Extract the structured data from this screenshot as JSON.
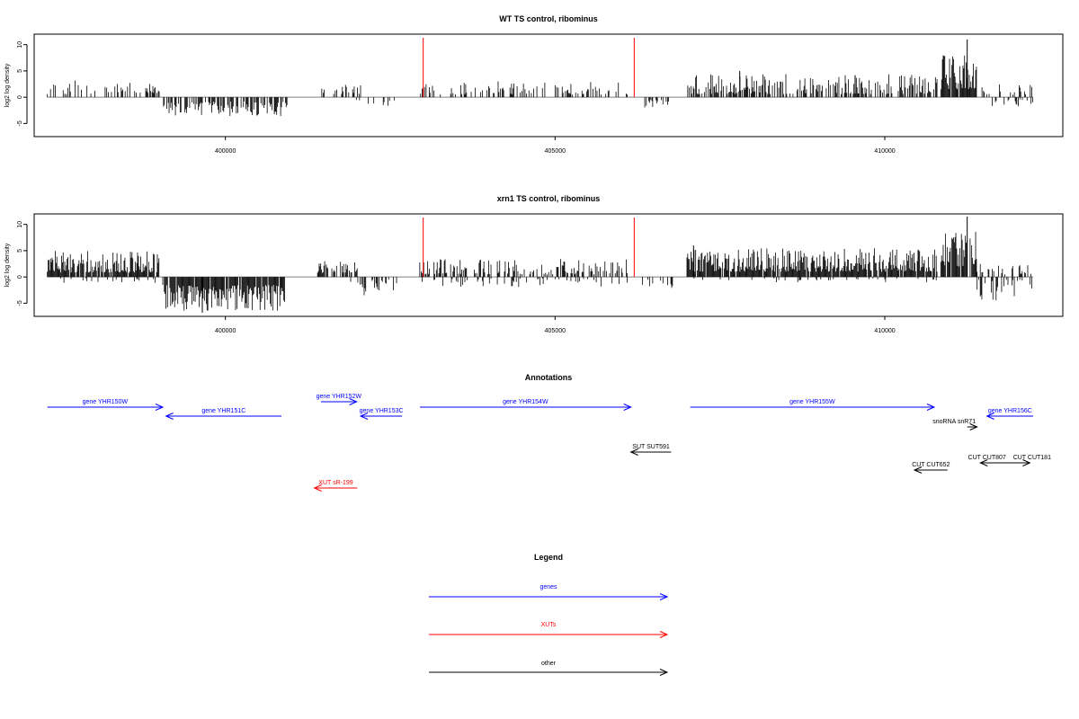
{
  "colors": {
    "gene": "#0000ff",
    "xut": "#ff0000",
    "other": "#000000",
    "axis": "#000000",
    "baseline": "#808080",
    "marker": "#ff0000"
  },
  "chart_data": [
    {
      "type": "bar",
      "title": "WT TS control, ribominus",
      "ylabel": "log2 log density",
      "xlim": [
        397100,
        412700
      ],
      "ylim": [
        -7.5,
        12
      ],
      "yticks": [
        -5,
        0,
        5,
        10
      ],
      "yticklabels": [
        "-5",
        "0",
        "5",
        "10"
      ],
      "xticks": [
        400000,
        405000,
        410000
      ],
      "xticklabels": [
        "400000",
        "405000",
        "410000"
      ],
      "markers": [
        403000,
        406200
      ],
      "segments": [
        {
          "from": 397300,
          "to": 398300,
          "sign": 1,
          "lo": 0.6,
          "hi": 3.5,
          "density": 0.35
        },
        {
          "from": 398300,
          "to": 399000,
          "sign": 1,
          "lo": 0.8,
          "hi": 2.8,
          "density": 0.4
        },
        {
          "from": 399050,
          "to": 400950,
          "sign": -1,
          "lo": 0.8,
          "hi": 3.6,
          "density": 0.55
        },
        {
          "from": 401450,
          "to": 402050,
          "sign": 1,
          "lo": 0.6,
          "hi": 2.4,
          "density": 0.35
        },
        {
          "from": 401950,
          "to": 402600,
          "sign": -1,
          "lo": 0.5,
          "hi": 1.8,
          "density": 0.2
        },
        {
          "from": 402900,
          "to": 406150,
          "sign": 1,
          "lo": 0.5,
          "hi": 3.0,
          "density": 0.35
        },
        {
          "from": 406300,
          "to": 406750,
          "sign": -1,
          "lo": 0.5,
          "hi": 2.2,
          "density": 0.25
        },
        {
          "from": 407000,
          "to": 410800,
          "sign": 1,
          "lo": 0.6,
          "hi": 4.4,
          "density": 0.55
        },
        {
          "from": 410850,
          "to": 411400,
          "sign": 1,
          "lo": 1.5,
          "hi": 8.0,
          "density": 0.9
        },
        {
          "from": 411450,
          "to": 412250,
          "sign": 1,
          "lo": 0.5,
          "hi": 2.5,
          "density": 0.35
        },
        {
          "from": 411450,
          "to": 412250,
          "sign": -1,
          "lo": 0.4,
          "hi": 1.8,
          "density": 0.2
        }
      ],
      "peaks": [
        {
          "x": 411250,
          "y": 11.0
        },
        {
          "x": 407800,
          "y": 5.0
        },
        {
          "x": 409550,
          "y": 4.2
        }
      ]
    },
    {
      "type": "bar",
      "title": "xrn1 TS control, ribominus",
      "ylabel": "log2 log density",
      "xlim": [
        397100,
        412700
      ],
      "ylim": [
        -7.5,
        12
      ],
      "yticks": [
        -5,
        0,
        5,
        10
      ],
      "yticklabels": [
        "-5",
        "0",
        "5",
        "10"
      ],
      "xticks": [
        400000,
        405000,
        410000
      ],
      "xticklabels": [
        "400000",
        "405000",
        "410000"
      ],
      "markers": [
        403000,
        406200
      ],
      "segments": [
        {
          "from": 397300,
          "to": 399000,
          "sign": 1,
          "lo": 0.8,
          "hi": 5.0,
          "density": 0.85
        },
        {
          "from": 397300,
          "to": 399000,
          "sign": -1,
          "lo": 0.3,
          "hi": 1.2,
          "density": 0.15
        },
        {
          "from": 399050,
          "to": 400900,
          "sign": -1,
          "lo": 1.5,
          "hi": 6.5,
          "density": 0.9
        },
        {
          "from": 401350,
          "to": 402000,
          "sign": 1,
          "lo": 0.8,
          "hi": 3.0,
          "density": 0.6
        },
        {
          "from": 401900,
          "to": 402600,
          "sign": -1,
          "lo": 0.5,
          "hi": 3.5,
          "density": 0.4
        },
        {
          "from": 402900,
          "to": 406150,
          "sign": 1,
          "lo": 0.5,
          "hi": 3.5,
          "density": 0.45
        },
        {
          "from": 402900,
          "to": 406150,
          "sign": -1,
          "lo": 0.3,
          "hi": 2.0,
          "density": 0.2
        },
        {
          "from": 406300,
          "to": 406800,
          "sign": -1,
          "lo": 0.5,
          "hi": 2.2,
          "density": 0.3
        },
        {
          "from": 407000,
          "to": 410800,
          "sign": 1,
          "lo": 1.0,
          "hi": 5.5,
          "density": 0.92
        },
        {
          "from": 407000,
          "to": 410800,
          "sign": -1,
          "lo": 0.3,
          "hi": 1.0,
          "density": 0.1
        },
        {
          "from": 410850,
          "to": 411400,
          "sign": 1,
          "lo": 2.0,
          "hi": 9.0,
          "density": 0.9
        },
        {
          "from": 411400,
          "to": 412250,
          "sign": 1,
          "lo": 0.5,
          "hi": 2.5,
          "density": 0.4
        },
        {
          "from": 411400,
          "to": 412250,
          "sign": -1,
          "lo": 0.5,
          "hi": 4.5,
          "density": 0.45
        }
      ],
      "peaks": [
        {
          "x": 411250,
          "y": 11.5
        },
        {
          "x": 399650,
          "y": -6.8
        },
        {
          "x": 407100,
          "y": 6.0
        }
      ]
    }
  ],
  "annotations": {
    "title": "Annotations",
    "features": [
      {
        "label": "gene YHR150W",
        "class": "gene",
        "start": 397300,
        "end": 399050,
        "strand": "+",
        "row": 0,
        "label_dx": 0
      },
      {
        "label": "gene YHR151C",
        "class": "gene",
        "start": 399100,
        "end": 400850,
        "strand": "-",
        "row": 0.5,
        "label_dx": 0
      },
      {
        "label": "gene YHR152W",
        "class": "gene",
        "start": 401450,
        "end": 401990,
        "strand": "+",
        "row": -0.3,
        "label_dx": 0
      },
      {
        "label": "gene YHR153C",
        "class": "gene",
        "start": 402050,
        "end": 402680,
        "strand": "-",
        "row": 0.5,
        "label_dx": 0
      },
      {
        "label": "gene YHR154W",
        "class": "gene",
        "start": 402950,
        "end": 406150,
        "strand": "+",
        "row": 0,
        "label_dx": 0
      },
      {
        "label": "gene YHR155W",
        "class": "gene",
        "start": 407050,
        "end": 410750,
        "strand": "+",
        "row": 0,
        "label_dx": 0
      },
      {
        "label": "gene YHR156C",
        "class": "gene",
        "start": 411550,
        "end": 412250,
        "strand": "-",
        "row": 0.5,
        "label_dx": 0
      },
      {
        "label": "snoRNA snR71",
        "class": "other",
        "start": 411250,
        "end": 411400,
        "strand": "+",
        "row": 1.1,
        "label_dx": -20
      },
      {
        "label": "SUT SUT591",
        "class": "other",
        "start": 406150,
        "end": 406760,
        "strand": "-",
        "row": 2.5,
        "label_dx": 0
      },
      {
        "label": "CUT CUT652",
        "class": "other",
        "start": 410450,
        "end": 410950,
        "strand": "-",
        "row": 3.5,
        "label_dx": 0
      },
      {
        "label": "CUT CUT807",
        "class": "other",
        "start": 411450,
        "end": 411650,
        "strand": "-",
        "row": 3.1,
        "label_dx": 0
      },
      {
        "label": "CUT CUT181",
        "class": "other",
        "start": 411450,
        "end": 412200,
        "strand": "+",
        "row": 3.1,
        "label_dx": 30
      },
      {
        "label": "XUT sR-199",
        "class": "xut",
        "start": 401350,
        "end": 402000,
        "strand": "-",
        "row": 4.5,
        "label_dx": 0
      }
    ]
  },
  "legend": {
    "title": "Legend",
    "items": [
      {
        "label": "genes",
        "class": "gene"
      },
      {
        "label": "XUTs",
        "class": "xut"
      },
      {
        "label": "other",
        "class": "other"
      }
    ]
  }
}
